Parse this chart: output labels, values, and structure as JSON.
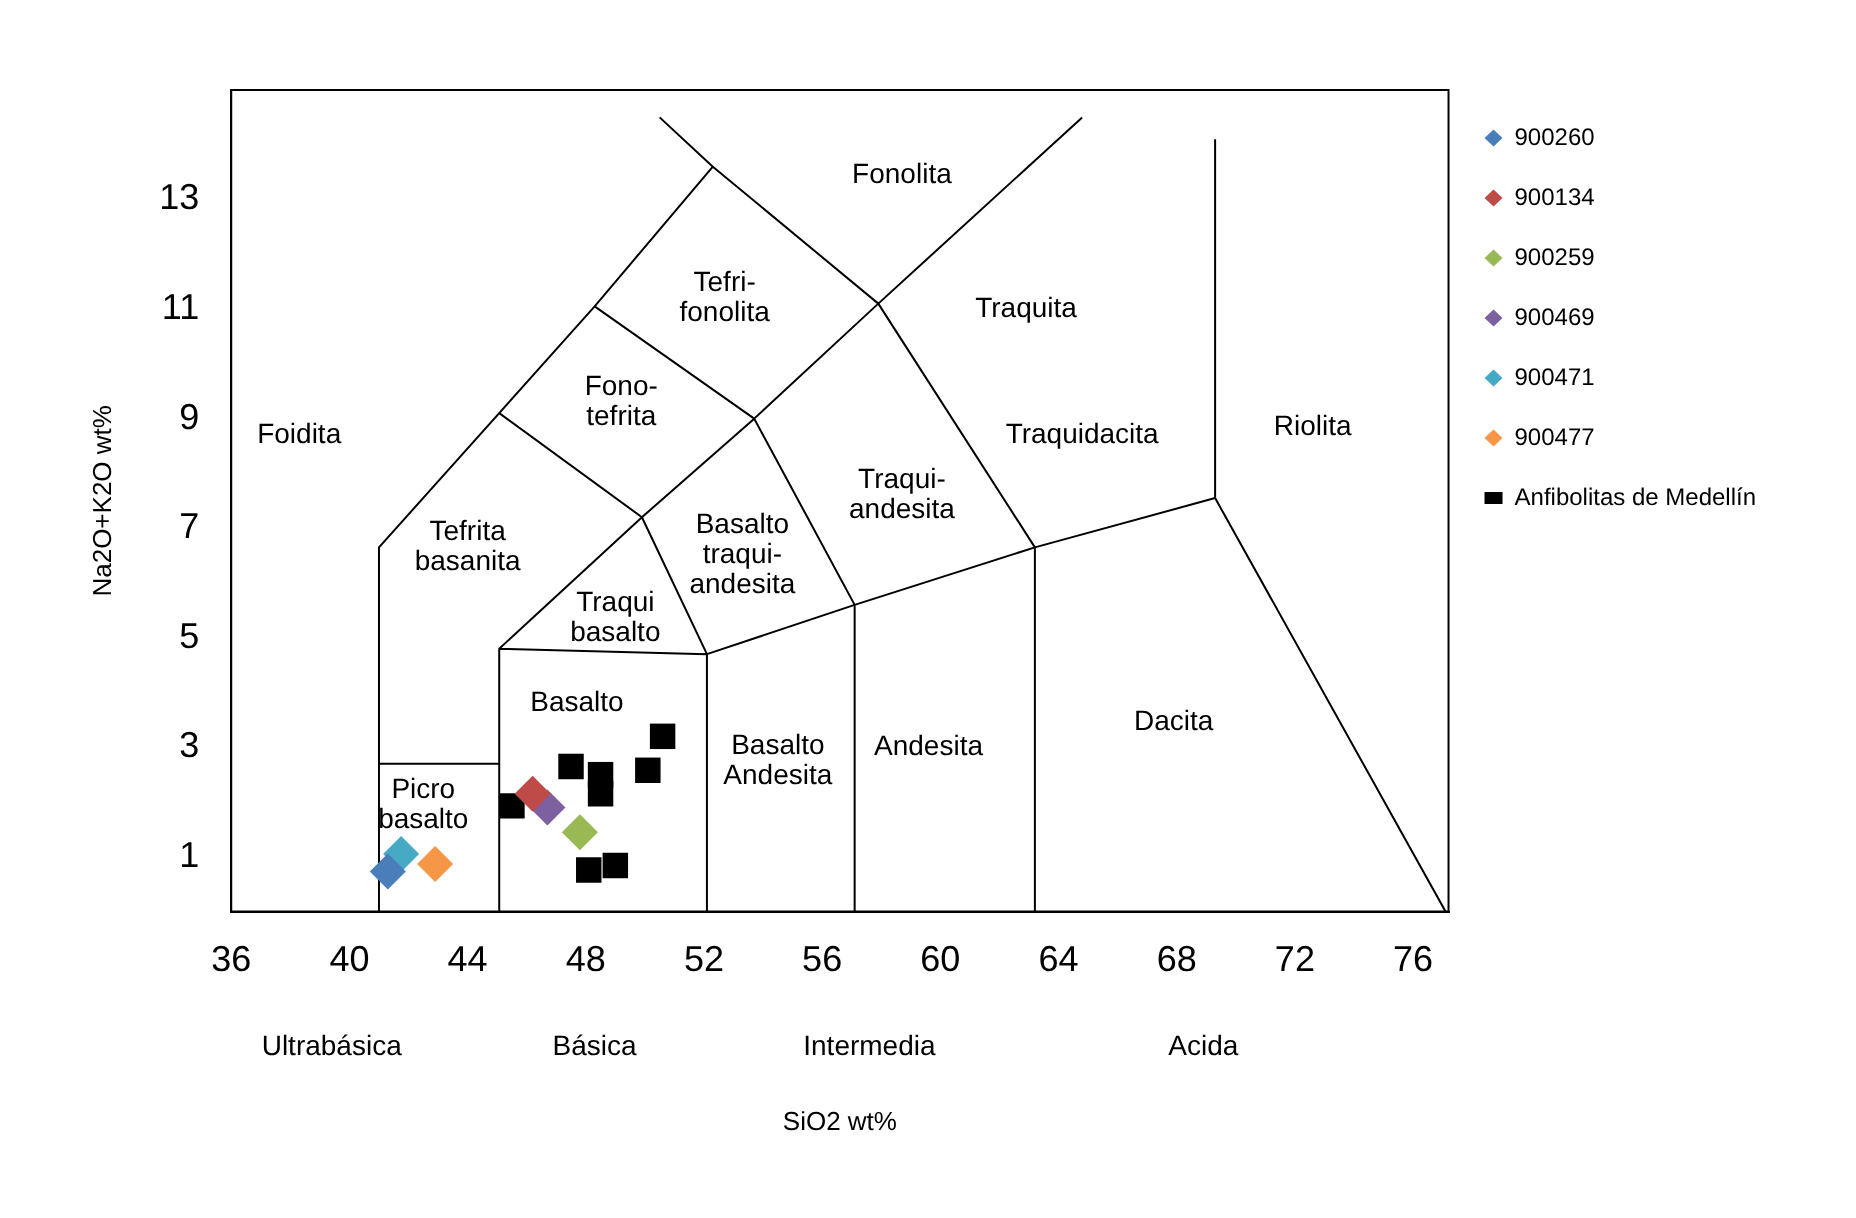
{
  "chart_data": {
    "type": "scatter",
    "xlabel": "SiO2 wt%",
    "ylabel": "Na2O+K2O wt%",
    "xlim": [
      36,
      77.2
    ],
    "ylim": [
      0,
      15
    ],
    "xticks": [
      36,
      40,
      44,
      48,
      52,
      56,
      60,
      64,
      68,
      72,
      76
    ],
    "yticks": [
      1,
      3,
      5,
      7,
      9,
      11,
      13
    ],
    "grid": false,
    "legend": "right",
    "series": [
      {
        "name": "900260",
        "color": "#4a7ebb",
        "marker": "diamond",
        "x": [
          41.3
        ],
        "values": [
          0.73
        ]
      },
      {
        "name": "900134",
        "color": "#be4b48",
        "marker": "diamond",
        "x": [
          46.2
        ],
        "values": [
          2.15
        ]
      },
      {
        "name": "900259",
        "color": "#98b954",
        "marker": "diamond",
        "x": [
          47.8
        ],
        "values": [
          1.45
        ]
      },
      {
        "name": "900469",
        "color": "#7d60a0",
        "marker": "diamond",
        "x": [
          46.7
        ],
        "values": [
          1.9
        ]
      },
      {
        "name": "900471",
        "color": "#46aac5",
        "marker": "diamond",
        "x": [
          41.75
        ],
        "values": [
          1.05
        ]
      },
      {
        "name": "900477",
        "color": "#f79646",
        "marker": "diamond",
        "x": [
          42.9
        ],
        "values": [
          0.87
        ]
      },
      {
        "name": "Anfibolitas de Medellín",
        "color": "#000000",
        "marker": "square",
        "x": [
          45.5,
          47.5,
          48.5,
          48.5,
          50.1,
          50.6,
          48.1,
          49.0
        ],
        "values": [
          1.93,
          2.65,
          2.5,
          2.15,
          2.58,
          3.2,
          0.76,
          0.84
        ]
      },
      {
        "type": "line",
        "color": "#000000",
        "marker": "none",
        "x": [
          41,
          41,
          45.07,
          48.3,
          52.3,
          50.5,
          null,
          52.3,
          57.9,
          63.2,
          null,
          57.9,
          64.8,
          null,
          48.3,
          53.7,
          57.9,
          null,
          45.07,
          49.9,
          53.7,
          57.1,
          null,
          45.07,
          49.9,
          52.1,
          null,
          45.07,
          45.07,
          52.1,
          52.1,
          null,
          41,
          45.07,
          null,
          52.1,
          57.1,
          63.2,
          69.3,
          77.1,
          null,
          57.1,
          57.1,
          null,
          63.2,
          63.2,
          null,
          69.3,
          69.3
        ],
        "values": [
          0,
          6.65,
          9.1,
          11.05,
          13.6,
          14.5,
          null,
          13.6,
          11.1,
          6.65,
          null,
          11.1,
          14.5,
          null,
          11.05,
          9.0,
          11.1,
          null,
          9.1,
          7.2,
          9.0,
          5.6,
          null,
          4.8,
          7.2,
          4.7,
          null,
          0,
          4.8,
          4.7,
          0,
          null,
          2.7,
          2.7,
          null,
          4.7,
          5.6,
          6.65,
          7.55,
          0,
          null,
          0,
          5.6,
          null,
          0,
          6.65,
          null,
          7.55,
          14.1
        ]
      }
    ],
    "annotations": [
      "Fonolita",
      "Tefri-\nfonolita",
      "Traquita",
      "Foidita",
      "Fono-\ntefrita",
      "Traquidacita",
      "Riolita",
      "Traqui-\nandesita",
      "Basalto\ntraqui-\nandesita",
      "Tefrita\nbasanita",
      "Traqui\nbasalto",
      "Basalto",
      "Basalto\nAndesita",
      "Andesita",
      "Dacita",
      "Picro\nbasalto",
      "Ultrabásica",
      "Básica",
      "Intermedia",
      "Acida"
    ]
  }
}
